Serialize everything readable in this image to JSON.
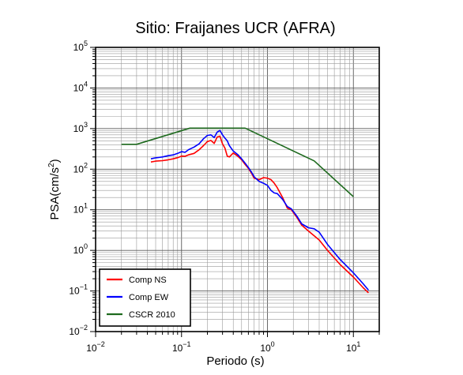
{
  "chart_data": {
    "type": "line",
    "title": "Sitio: Fraijanes UCR (AFRA)",
    "xlabel": "Periodo (s)",
    "ylabel_main": "PSA(cm/s",
    "ylabel_sup": "2",
    "ylabel_tail": ")",
    "x_scale": "log",
    "y_scale": "log",
    "xlim": [
      0.01,
      20
    ],
    "ylim": [
      0.01,
      100000
    ],
    "grid": true,
    "legend_position": "bottom-left",
    "x_ticks": [
      {
        "base": "10",
        "exp": "−2",
        "value": 0.01
      },
      {
        "base": "10",
        "exp": "−1",
        "value": 0.1
      },
      {
        "base": "10",
        "exp": "0",
        "value": 1
      },
      {
        "base": "10",
        "exp": "1",
        "value": 10
      }
    ],
    "y_ticks": [
      {
        "base": "10",
        "exp": "−2",
        "value": 0.01
      },
      {
        "base": "10",
        "exp": "−1",
        "value": 0.1
      },
      {
        "base": "10",
        "exp": "0",
        "value": 1
      },
      {
        "base": "10",
        "exp": "1",
        "value": 10
      },
      {
        "base": "10",
        "exp": "2",
        "value": 100
      },
      {
        "base": "10",
        "exp": "3",
        "value": 1000
      },
      {
        "base": "10",
        "exp": "4",
        "value": 10000
      },
      {
        "base": "10",
        "exp": "5",
        "value": 100000
      }
    ],
    "series": [
      {
        "name": "Comp NS",
        "color": "#ff0000",
        "points": [
          [
            0.044,
            150
          ],
          [
            0.05,
            158
          ],
          [
            0.06,
            162
          ],
          [
            0.07,
            170
          ],
          [
            0.08,
            180
          ],
          [
            0.09,
            192
          ],
          [
            0.1,
            210
          ],
          [
            0.11,
            208
          ],
          [
            0.12,
            225
          ],
          [
            0.14,
            245
          ],
          [
            0.16,
            300
          ],
          [
            0.18,
            380
          ],
          [
            0.2,
            480
          ],
          [
            0.22,
            510
          ],
          [
            0.24,
            430
          ],
          [
            0.26,
            620
          ],
          [
            0.28,
            650
          ],
          [
            0.3,
            420
          ],
          [
            0.32,
            330
          ],
          [
            0.34,
            210
          ],
          [
            0.36,
            200
          ],
          [
            0.4,
            250
          ],
          [
            0.45,
            210
          ],
          [
            0.5,
            170
          ],
          [
            0.55,
            130
          ],
          [
            0.6,
            105
          ],
          [
            0.65,
            80
          ],
          [
            0.7,
            60
          ],
          [
            0.8,
            55
          ],
          [
            0.9,
            62
          ],
          [
            1.0,
            60
          ],
          [
            1.1,
            55
          ],
          [
            1.2,
            45
          ],
          [
            1.3,
            35
          ],
          [
            1.5,
            20
          ],
          [
            1.7,
            11
          ],
          [
            1.9,
            10
          ],
          [
            2.2,
            6.5
          ],
          [
            2.5,
            4.2
          ],
          [
            3.0,
            3.0
          ],
          [
            4.0,
            1.8
          ],
          [
            5.0,
            1.0
          ],
          [
            7.0,
            0.45
          ],
          [
            10.0,
            0.22
          ],
          [
            13.0,
            0.12
          ],
          [
            15.0,
            0.09
          ]
        ]
      },
      {
        "name": "Comp EW",
        "color": "#0000ff",
        "points": [
          [
            0.044,
            180
          ],
          [
            0.05,
            190
          ],
          [
            0.06,
            200
          ],
          [
            0.07,
            215
          ],
          [
            0.08,
            225
          ],
          [
            0.09,
            245
          ],
          [
            0.1,
            270
          ],
          [
            0.11,
            260
          ],
          [
            0.12,
            300
          ],
          [
            0.14,
            350
          ],
          [
            0.16,
            420
          ],
          [
            0.18,
            560
          ],
          [
            0.2,
            680
          ],
          [
            0.22,
            700
          ],
          [
            0.24,
            600
          ],
          [
            0.26,
            820
          ],
          [
            0.28,
            900
          ],
          [
            0.3,
            700
          ],
          [
            0.32,
            580
          ],
          [
            0.34,
            500
          ],
          [
            0.36,
            380
          ],
          [
            0.4,
            280
          ],
          [
            0.45,
            230
          ],
          [
            0.5,
            180
          ],
          [
            0.55,
            140
          ],
          [
            0.6,
            110
          ],
          [
            0.65,
            85
          ],
          [
            0.7,
            65
          ],
          [
            0.8,
            50
          ],
          [
            0.9,
            45
          ],
          [
            1.0,
            40
          ],
          [
            1.1,
            30
          ],
          [
            1.2,
            26
          ],
          [
            1.3,
            25
          ],
          [
            1.5,
            18
          ],
          [
            1.7,
            12
          ],
          [
            1.9,
            10.5
          ],
          [
            2.2,
            7.0
          ],
          [
            2.5,
            4.5
          ],
          [
            3.0,
            3.6
          ],
          [
            3.5,
            3.4
          ],
          [
            4.0,
            2.8
          ],
          [
            5.0,
            1.4
          ],
          [
            7.0,
            0.6
          ],
          [
            10.0,
            0.28
          ],
          [
            13.0,
            0.15
          ],
          [
            15.0,
            0.105
          ]
        ]
      },
      {
        "name": "CSCR 2010",
        "color": "#1e6a1e",
        "points": [
          [
            0.02,
            410
          ],
          [
            0.03,
            410
          ],
          [
            0.125,
            1025
          ],
          [
            0.55,
            1025
          ],
          [
            3.5,
            160
          ],
          [
            10.0,
            21
          ]
        ]
      }
    ]
  }
}
